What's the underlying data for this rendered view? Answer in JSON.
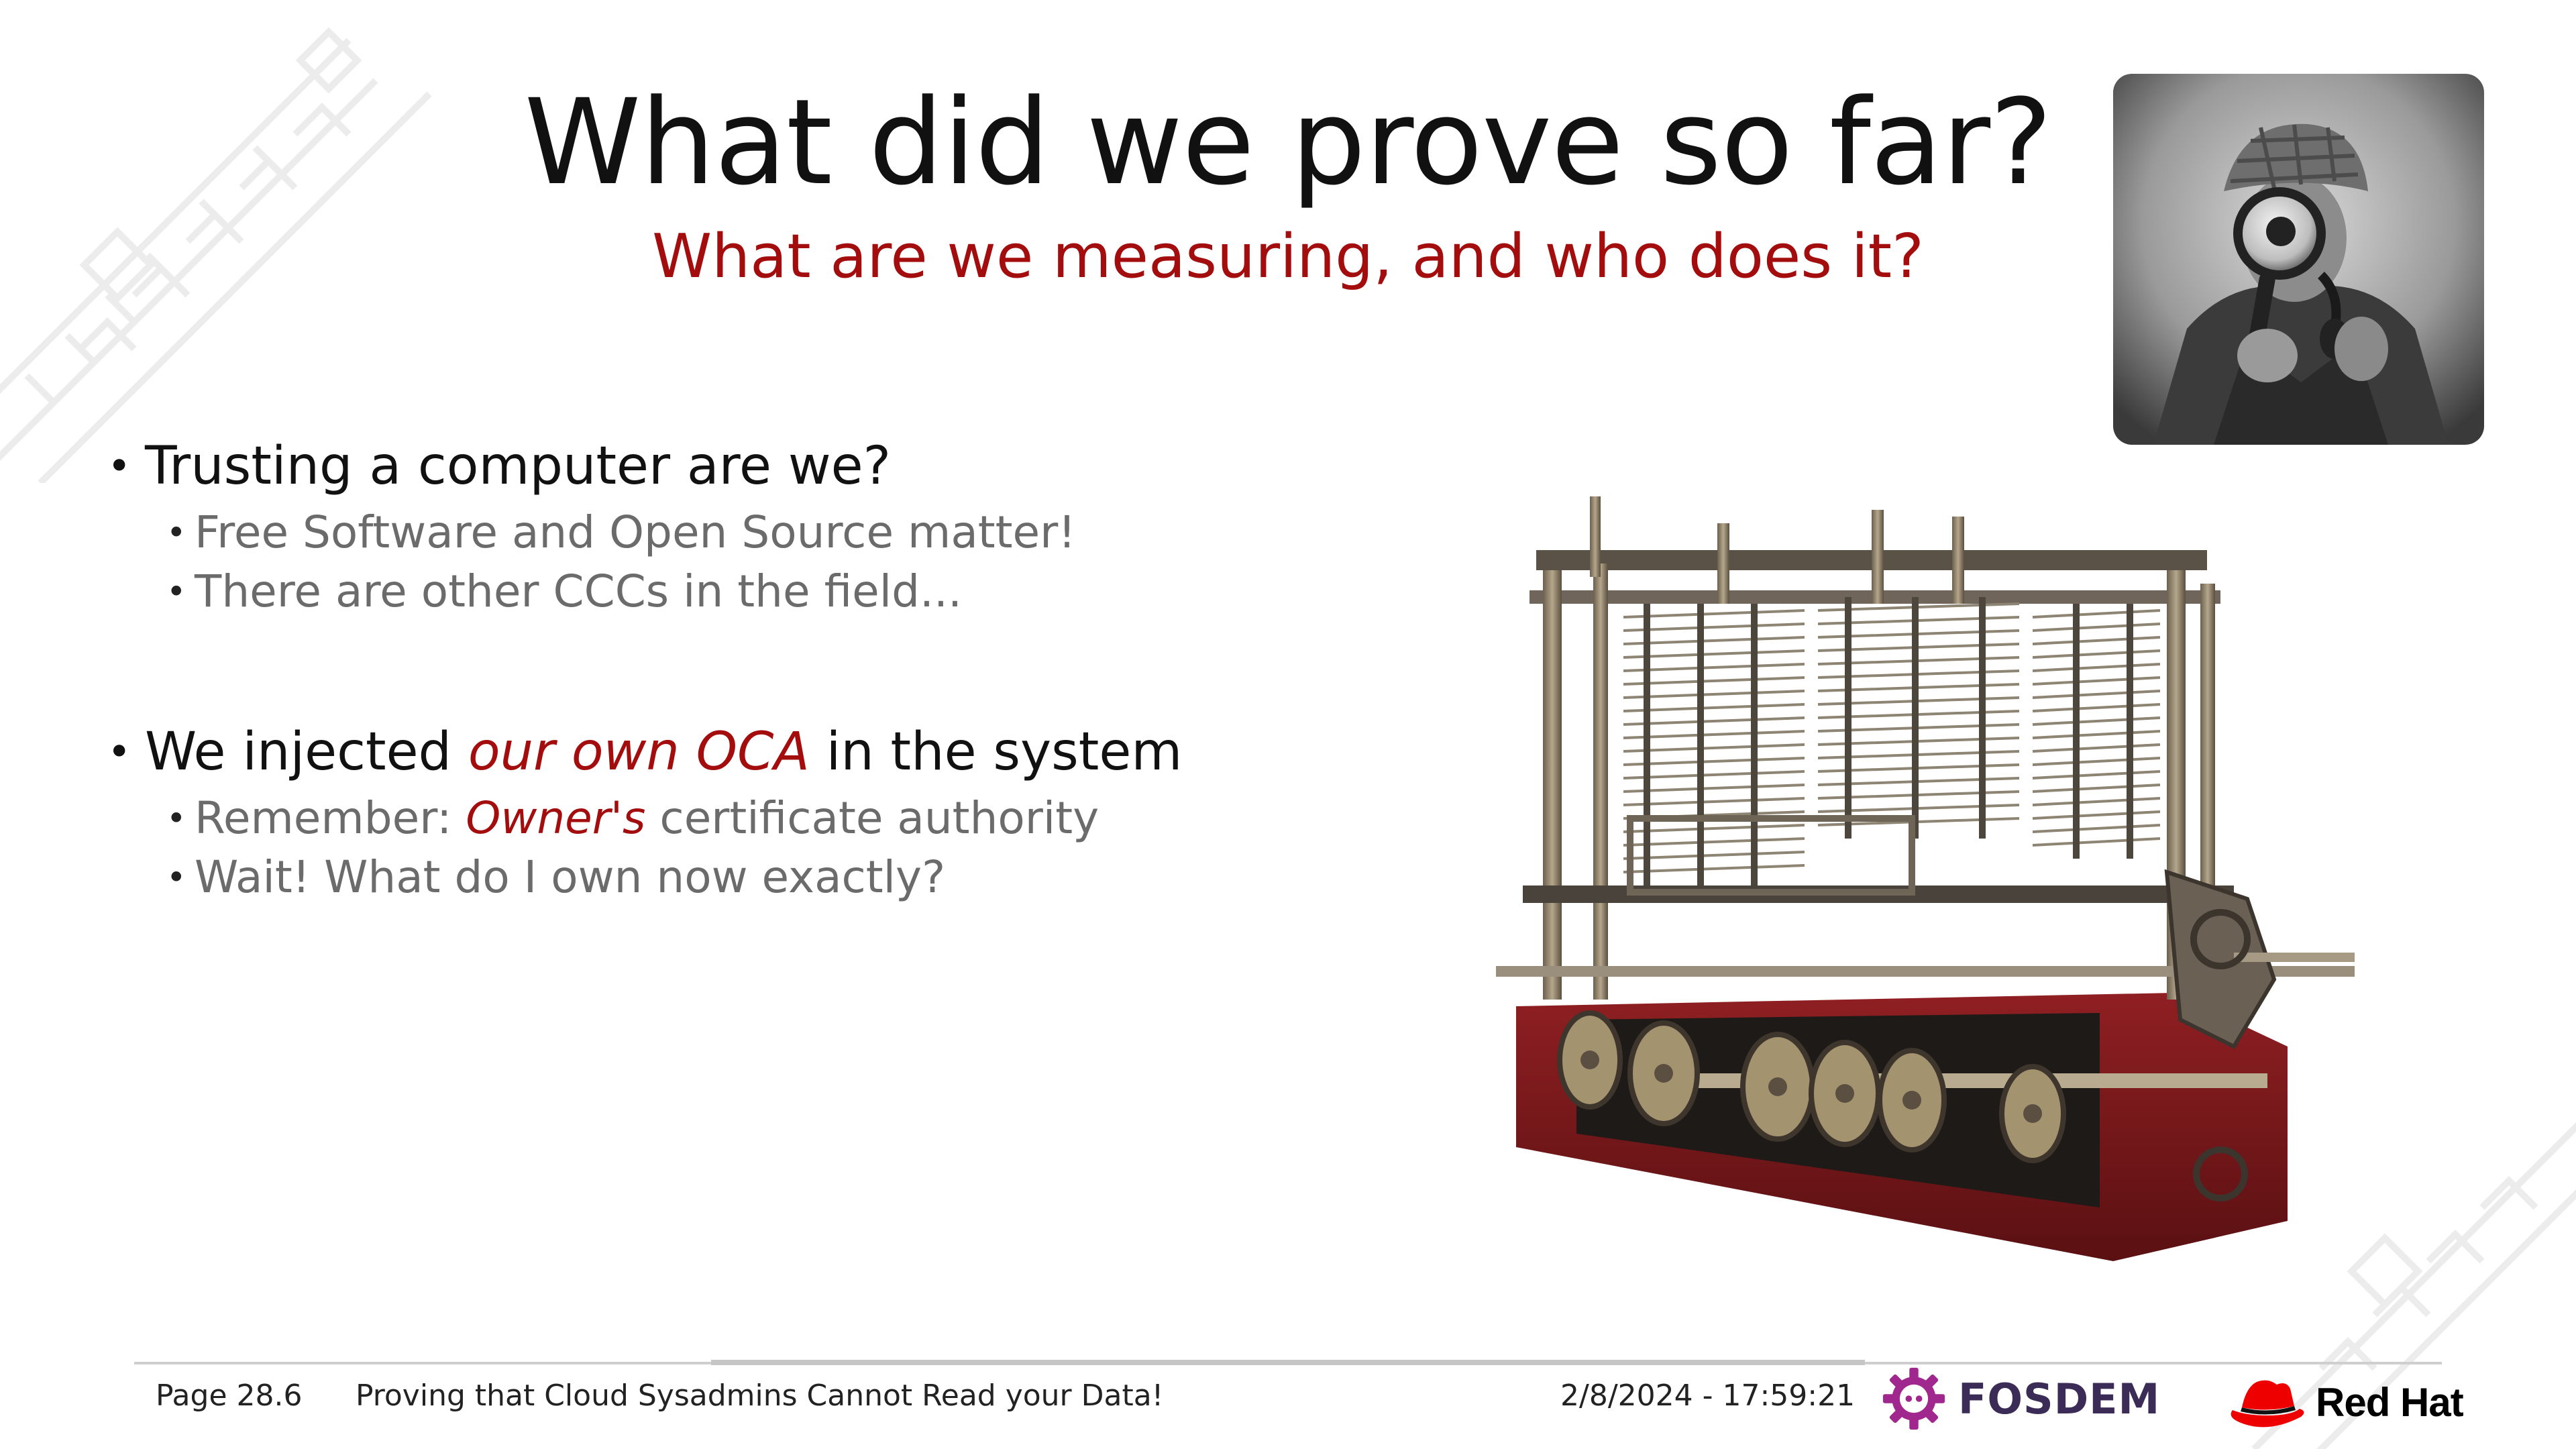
{
  "slide": {
    "title": "What did we prove so far?",
    "subtitle": "What are we measuring, and who does it?"
  },
  "bullets": [
    {
      "text": "Trusting a computer are we?",
      "subs": [
        "Free Software and Open Source matter!",
        "There are other CCCs in the field..."
      ]
    },
    {
      "text_before": "We injected ",
      "text_emphasis": "our own OCA",
      "text_after": " in the system",
      "subs": [
        {
          "before": "Remember: ",
          "emphasis": "Owner's",
          "after": " certificate authority"
        },
        "Wait! What do I own now exactly?"
      ]
    }
  ],
  "images": {
    "detective_photo": "detective-with-magnifying-glass",
    "engine_photo": "analytical-engine"
  },
  "footer": {
    "page": "Page 28.6",
    "talk_title": "Proving that Cloud Sysadmins Cannot Read your Data!",
    "datetime": "2/8/2024 - 17:59:21",
    "fosdem_logo_text": "FOSDEM",
    "redhat_logo_text": "Red Hat"
  },
  "colors": {
    "accent_red": "#a30d0d",
    "text_dark": "#111111",
    "text_gray": "#6b6b6b",
    "fosdem_purple": "#a0278d",
    "redhat_red": "#ee0000"
  }
}
